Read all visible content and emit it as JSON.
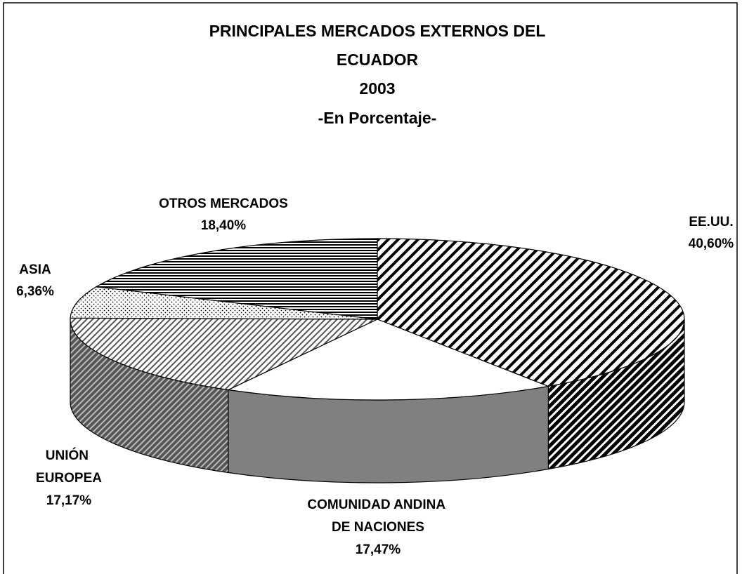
{
  "chart_data": {
    "type": "pie3d",
    "title": [
      "PRINCIPALES MERCADOS EXTERNOS DEL",
      "ECUADOR",
      "2003",
      "-En Porcentaje-"
    ],
    "categories": [
      "EE.UU.",
      "COMUNIDAD ANDINA DE NACIONES",
      "UNIÓN EUROPEA",
      "ASIA",
      "OTROS MERCADOS"
    ],
    "values": [
      40.6,
      17.47,
      17.17,
      6.36,
      18.4
    ],
    "value_labels": [
      "40,60%",
      "17,47%",
      "17,17%",
      "6,36%",
      "18,40%"
    ]
  }
}
